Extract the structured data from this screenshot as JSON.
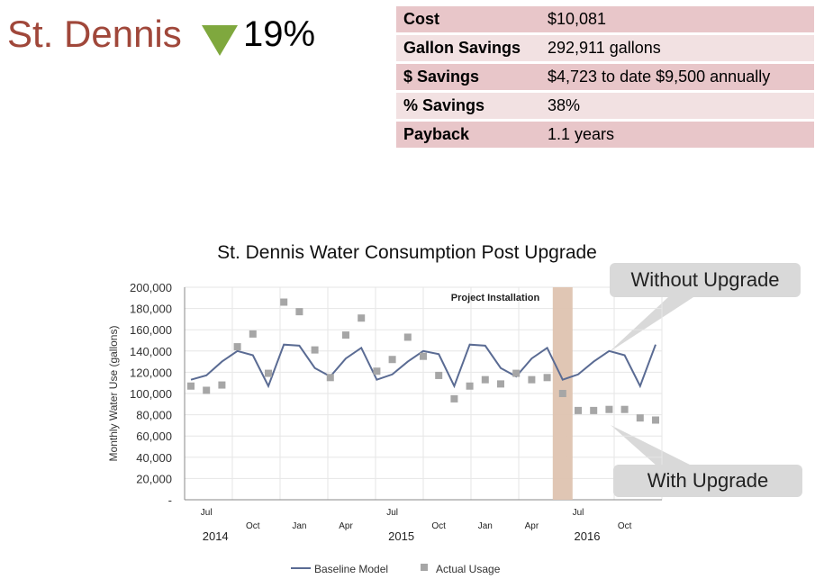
{
  "header": {
    "title": "St. Dennis",
    "percent": "19%",
    "arrow_color": "#7FA83E",
    "title_color": "#A0473A"
  },
  "table": [
    {
      "key": "Cost",
      "value": "$10,081"
    },
    {
      "key": "Gallon Savings",
      "value": "292,911 gallons"
    },
    {
      "key": "$ Savings",
      "value": "$4,723 to date $9,500 annually"
    },
    {
      "key": "% Savings",
      "value": "38%"
    },
    {
      "key": "Payback",
      "value": "1.1 years"
    }
  ],
  "callouts": {
    "without": "Without Upgrade",
    "with": "With Upgrade"
  },
  "chart_data": {
    "type": "line",
    "title": "St. Dennis Water Consumption Post Upgrade",
    "ylabel": "Monthly Water Use (gallons)",
    "ylim": [
      0,
      200000
    ],
    "yticks": [
      "-",
      "20,000",
      "40,000",
      "60,000",
      "80,000",
      "100,000",
      "120,000",
      "140,000",
      "160,000",
      "180,000",
      "200,000"
    ],
    "xticks": [
      {
        "i": 1,
        "label": "Jul",
        "row": 1
      },
      {
        "i": 4,
        "label": "Oct",
        "row": 2
      },
      {
        "i": 7,
        "label": "Jan",
        "row": 2
      },
      {
        "i": 10,
        "label": "Apr",
        "row": 2
      },
      {
        "i": 13,
        "label": "Jul",
        "row": 1
      },
      {
        "i": 16,
        "label": "Oct",
        "row": 2
      },
      {
        "i": 19,
        "label": "Jan",
        "row": 2
      },
      {
        "i": 22,
        "label": "Apr",
        "row": 2
      },
      {
        "i": 25,
        "label": "Jul",
        "row": 1
      },
      {
        "i": 28,
        "label": "Oct",
        "row": 2
      }
    ],
    "years": [
      {
        "i": 1,
        "label": "2014"
      },
      {
        "i": 13,
        "label": "2015"
      },
      {
        "i": 25,
        "label": "2016"
      }
    ],
    "annotation": {
      "text": "Project Installation",
      "i": 24,
      "color": "#DEC3B0"
    },
    "grid": true,
    "series": [
      {
        "name": "Baseline Model",
        "color": "#5A6B93",
        "style": "line",
        "values": [
          113000,
          117000,
          130000,
          140000,
          136000,
          107000,
          146000,
          145000,
          124000,
          116000,
          133000,
          143000,
          113000,
          118000,
          130000,
          140000,
          137000,
          107000,
          146000,
          145000,
          124000,
          116000,
          133000,
          143000,
          113000,
          118000,
          130000,
          140000,
          136000,
          107000,
          146000
        ]
      },
      {
        "name": "Actual Usage",
        "color": "#A6A6A6",
        "style": "scatter",
        "values": [
          107000,
          103000,
          108000,
          144000,
          156000,
          119000,
          186000,
          177000,
          141000,
          115000,
          155000,
          171000,
          121000,
          132000,
          153000,
          135000,
          117000,
          95000,
          107000,
          113000,
          109000,
          119000,
          113000,
          115000,
          100000,
          84000,
          84000,
          85000,
          85000,
          77000,
          75000
        ]
      }
    ],
    "legend_position": "bottom"
  }
}
